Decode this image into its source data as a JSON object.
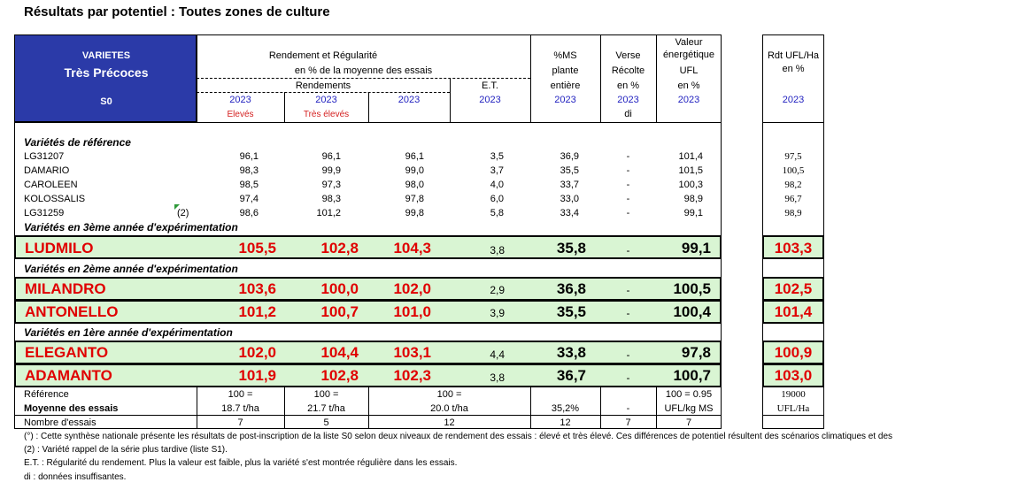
{
  "title": "Résultats par potentiel : Toutes zones de culture",
  "header": {
    "varietes": "VARIETES",
    "group": "Très Précoces",
    "series": "S0",
    "rendement_title": "Rendement et Régularité",
    "rendement_sub": "en % de la moyenne des essais",
    "rendements": "Rendements",
    "et": "E.T.",
    "ms_1": "%MS",
    "ms_2": "plante",
    "ms_3": "entière",
    "verse_1": "Verse",
    "verse_2": "Récolte",
    "verse_3": "en %",
    "valeur_1": "Valeur",
    "valeur_2": "énergétique",
    "valeur_3": "UFL",
    "valeur_4": "en %",
    "rdt_1": "Rdt UFL/Ha",
    "rdt_2": "en %",
    "year": "2023",
    "eleves": "Elevés",
    "tres_eleves": "Très élevés",
    "di": "di"
  },
  "sections": {
    "reference": "Variétés de référence",
    "y3": "Variétés en 3ème année d'expérimentation",
    "y2": "Variétés en 2ème année d'expérimentation",
    "y1": "Variétés en 1ère année d'expérimentation"
  },
  "reference_rows": [
    {
      "name": "LG31207",
      "note": "",
      "eleves": "96,1",
      "tres_eleves": "96,1",
      "moy": "96,1",
      "et": "3,5",
      "ms": "36,9",
      "verse": "-",
      "ufl": "101,4",
      "rdt": "97,5"
    },
    {
      "name": "DAMARIO",
      "note": "",
      "eleves": "98,3",
      "tres_eleves": "99,9",
      "moy": "99,0",
      "et": "3,7",
      "ms": "35,5",
      "verse": "-",
      "ufl": "101,5",
      "rdt": "100,5"
    },
    {
      "name": "CAROLEEN",
      "note": "",
      "eleves": "98,5",
      "tres_eleves": "97,3",
      "moy": "98,0",
      "et": "4,0",
      "ms": "33,7",
      "verse": "-",
      "ufl": "100,3",
      "rdt": "98,2"
    },
    {
      "name": "KOLOSSALIS",
      "note": "",
      "eleves": "97,4",
      "tres_eleves": "98,3",
      "moy": "97,8",
      "et": "6,0",
      "ms": "33,0",
      "verse": "-",
      "ufl": "98,9",
      "rdt": "96,7"
    },
    {
      "name": "LG31259",
      "note": "(2)",
      "eleves": "98,6",
      "tres_eleves": "101,2",
      "moy": "99,8",
      "et": "5,8",
      "ms": "33,4",
      "verse": "-",
      "ufl": "99,1",
      "rdt": "98,9"
    }
  ],
  "varieties": [
    {
      "name": "LUDMILO",
      "eleves": "105,5",
      "tres_eleves": "102,8",
      "moy": "104,3",
      "et": "3,8",
      "ms": "35,8",
      "verse": "-",
      "ufl": "99,1",
      "rdt": "103,3"
    },
    {
      "name": "MILANDRO",
      "eleves": "103,6",
      "tres_eleves": "100,0",
      "moy": "102,0",
      "et": "2,9",
      "ms": "36,8",
      "verse": "-",
      "ufl": "100,5",
      "rdt": "102,5"
    },
    {
      "name": "ANTONELLO",
      "eleves": "101,2",
      "tres_eleves": "100,7",
      "moy": "101,0",
      "et": "3,9",
      "ms": "35,5",
      "verse": "-",
      "ufl": "100,4",
      "rdt": "101,4"
    },
    {
      "name": "ELEGANTO",
      "eleves": "102,0",
      "tres_eleves": "104,4",
      "moy": "103,1",
      "et": "4,4",
      "ms": "33,8",
      "verse": "-",
      "ufl": "97,8",
      "rdt": "100,9"
    },
    {
      "name": "ADAMANTO",
      "eleves": "101,9",
      "tres_eleves": "102,8",
      "moy": "102,3",
      "et": "3,8",
      "ms": "36,7",
      "verse": "-",
      "ufl": "100,7",
      "rdt": "103,0"
    }
  ],
  "summary": {
    "reference_label": "Référence",
    "moyenne_label": "Moyenne des essais",
    "nombre_label": "Nombre d'essais",
    "ref_eleves": "100 =",
    "moy_eleves": "18.7 t/ha",
    "nb_eleves": "7",
    "ref_tres": "100 =",
    "moy_tres": "21.7 t/ha",
    "nb_tres": "5",
    "ref_moy": "100 =",
    "moy_moy": "20.0 t/ha",
    "nb_moy": "12",
    "moy_ms": "35,2%",
    "nb_ms": "12",
    "moy_verse": "-",
    "nb_verse": "7",
    "ref_ufl": "100 = 0.95",
    "moy_ufl": "UFL/kg MS",
    "nb_ufl": "7",
    "ref_rdt": "19000",
    "moy_rdt": "UFL/Ha"
  },
  "footnotes": [
    "(°) : Cette synthèse nationale présente les résultats de post-inscription de la liste S0 selon deux niveaux de rendement des essais : élevé et très élevé. Ces différences de potentiel résultent des scénarios climatiques et des",
    "(2) : Variété rappel de la série plus tardive (liste S1).",
    "E.T. : Régularité du rendement. Plus la valeur est faible, plus la variété s'est montrée régulière dans les essais.",
    "di : données insuffisantes."
  ],
  "colors": {
    "header_blue": "#2b3aa8",
    "year_blue": "#1f1fbf",
    "variety_red": "#e00000",
    "row_green": "#d9f5d3"
  }
}
